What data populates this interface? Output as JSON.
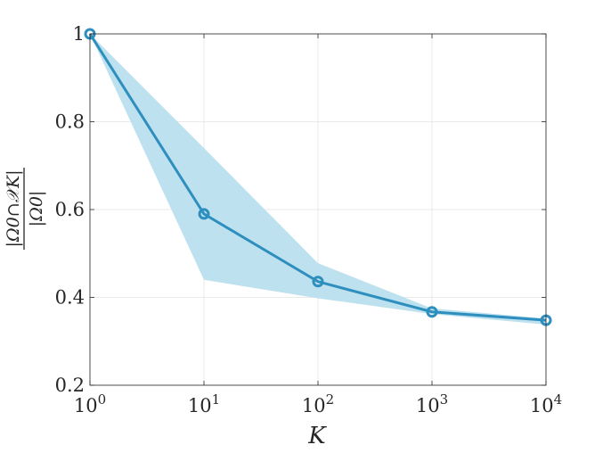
{
  "chart_data": {
    "type": "line",
    "x": [
      1,
      10,
      100,
      1000,
      10000
    ],
    "xscale": "log",
    "xlim": [
      1,
      10000
    ],
    "ylim": [
      0.2,
      1.0
    ],
    "grid": true,
    "xlabel": "K",
    "ylabel": {
      "numerator": "|Ω0∩𝒳K|",
      "denominator": "|Ω0|"
    },
    "x_tick_labels": [
      {
        "value": 1,
        "base": "10",
        "exp": "0"
      },
      {
        "value": 10,
        "base": "10",
        "exp": "1"
      },
      {
        "value": 100,
        "base": "10",
        "exp": "2"
      },
      {
        "value": 1000,
        "base": "10",
        "exp": "3"
      },
      {
        "value": 10000,
        "base": "10",
        "exp": "4"
      }
    ],
    "y_ticks": [
      0.2,
      0.4,
      0.6,
      0.8,
      1.0
    ],
    "y_tick_labels": [
      "0.2",
      "0.4",
      "0.6",
      "0.8",
      "1"
    ],
    "series": [
      {
        "values": [
          1.0,
          0.59,
          0.436,
          0.367,
          0.348
        ],
        "band_upper": [
          1.0,
          0.74,
          0.478,
          0.375,
          0.352
        ],
        "band_lower": [
          1.0,
          0.44,
          0.398,
          0.362,
          0.338
        ],
        "color": "#2e8fbf",
        "band_color": "#bde1ee",
        "marker": "circle"
      }
    ]
  }
}
